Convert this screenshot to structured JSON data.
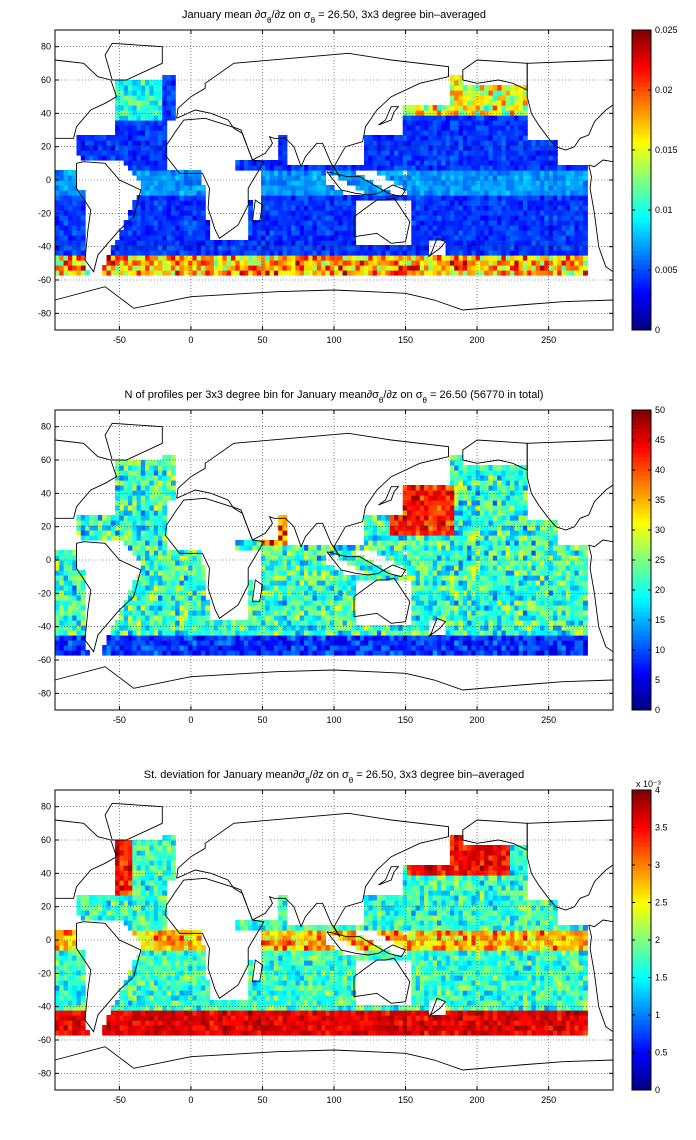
{
  "chart_data": [
    {
      "type": "heatmap",
      "title": "January mean ∂σθ/∂z on σθ = 26.50, 3x3 degree bin–averaged",
      "title_parts": {
        "pre": "January mean ∂σ",
        "sub1": "θ",
        "mid": "/∂z on σ",
        "sub2": "θ",
        "post": " = 26.50, 3x3 degree bin–averaged"
      },
      "xlim": [
        -95,
        295
      ],
      "ylim": [
        -90,
        90
      ],
      "xticks": [
        -50,
        0,
        50,
        100,
        150,
        200,
        250
      ],
      "yticks": [
        -80,
        -60,
        -40,
        -20,
        0,
        20,
        40,
        60,
        80
      ],
      "grid": true,
      "colorbar": {
        "min": 0,
        "max": 0.025,
        "ticks": [
          "0",
          "0.005",
          "0.01",
          "0.015",
          "0.02",
          "0.025"
        ],
        "exponent": ""
      },
      "bin_size_deg": 3,
      "field": "gradient"
    },
    {
      "type": "heatmap",
      "title": "N of profiles per 3x3 degree bin for January mean∂σθ/∂z on σθ = 26.50 (56770 in total)",
      "title_parts": {
        "pre": "N of profiles per 3x3 degree bin for January mean∂σ",
        "sub1": "θ",
        "mid": "/∂z on σ",
        "sub2": "θ",
        "post": " = 26.50 (56770 in total)"
      },
      "xlim": [
        -95,
        295
      ],
      "ylim": [
        -90,
        90
      ],
      "xticks": [
        -50,
        0,
        50,
        100,
        150,
        200,
        250
      ],
      "yticks": [
        -80,
        -60,
        -40,
        -20,
        0,
        20,
        40,
        60,
        80
      ],
      "grid": true,
      "colorbar": {
        "min": 0,
        "max": 50,
        "ticks": [
          "0",
          "5",
          "10",
          "15",
          "20",
          "25",
          "30",
          "35",
          "40",
          "45",
          "50"
        ],
        "exponent": ""
      },
      "bin_size_deg": 3,
      "field": "count"
    },
    {
      "type": "heatmap",
      "title": "St. deviation for January mean∂σθ/∂z on σθ = 26.50, 3x3 degree bin–averaged",
      "title_parts": {
        "pre": "St. deviation for January mean∂σ",
        "sub1": "θ",
        "mid": "/∂z on σ",
        "sub2": "θ",
        "post": " = 26.50, 3x3 degree bin–averaged"
      },
      "xlim": [
        -95,
        295
      ],
      "ylim": [
        -90,
        90
      ],
      "xticks": [
        -50,
        0,
        50,
        100,
        150,
        200,
        250
      ],
      "yticks": [
        -80,
        -60,
        -40,
        -20,
        0,
        20,
        40,
        60,
        80
      ],
      "grid": true,
      "colorbar": {
        "min": 0,
        "max": 0.004,
        "ticks": [
          "0",
          "0.5",
          "1",
          "1.5",
          "2",
          "2.5",
          "3",
          "3.5",
          "4"
        ],
        "exponent": "x 10⁻³"
      },
      "bin_size_deg": 3,
      "field": "stdev"
    }
  ]
}
